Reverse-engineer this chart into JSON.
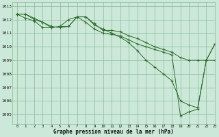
{
  "title": "Graphe pression niveau de la mer (hPa)",
  "background_color": "#cce8d8",
  "grid_color": "#88bb99",
  "line_color": "#2d6b2d",
  "xlim": [
    -0.5,
    23
  ],
  "ylim": [
    1004.3,
    1013.3
  ],
  "yticks": [
    1005,
    1006,
    1007,
    1008,
    1009,
    1010,
    1011,
    1012,
    1013
  ],
  "xticks": [
    0,
    1,
    2,
    3,
    4,
    5,
    6,
    7,
    8,
    9,
    10,
    11,
    12,
    13,
    14,
    15,
    16,
    17,
    18,
    19,
    20,
    21,
    22,
    23
  ],
  "series": [
    [
      1012.4,
      1012.4,
      1012.1,
      1011.8,
      1011.5,
      1011.4,
      1011.5,
      1012.2,
      1012.2,
      1011.7,
      1011.2,
      1011.2,
      1011.1,
      1010.8,
      1010.6,
      1010.3,
      1010.0,
      1009.8,
      1009.6,
      1009.2,
      1009.0,
      1009.0,
      1009.0,
      1009.0
    ],
    [
      1012.4,
      1012.4,
      1012.0,
      1011.8,
      1011.4,
      1011.5,
      1011.5,
      1012.2,
      1012.2,
      1011.6,
      1011.3,
      1011.0,
      1010.7,
      1010.3,
      1009.7,
      1009.0,
      1008.5,
      1008.0,
      1007.5,
      1006.0,
      1005.7,
      1005.5,
      1009.0,
      1010.2
    ],
    [
      1012.4,
      1012.1,
      1011.9,
      1011.4,
      1011.4,
      1011.5,
      1012.0,
      1012.2,
      1011.8,
      1011.3,
      1011.0,
      1010.9,
      1010.8,
      1010.5,
      1010.2,
      1010.0,
      1009.8,
      1009.6,
      1009.4,
      1004.9,
      1005.2,
      1005.4,
      1009.0,
      1010.2
    ]
  ]
}
